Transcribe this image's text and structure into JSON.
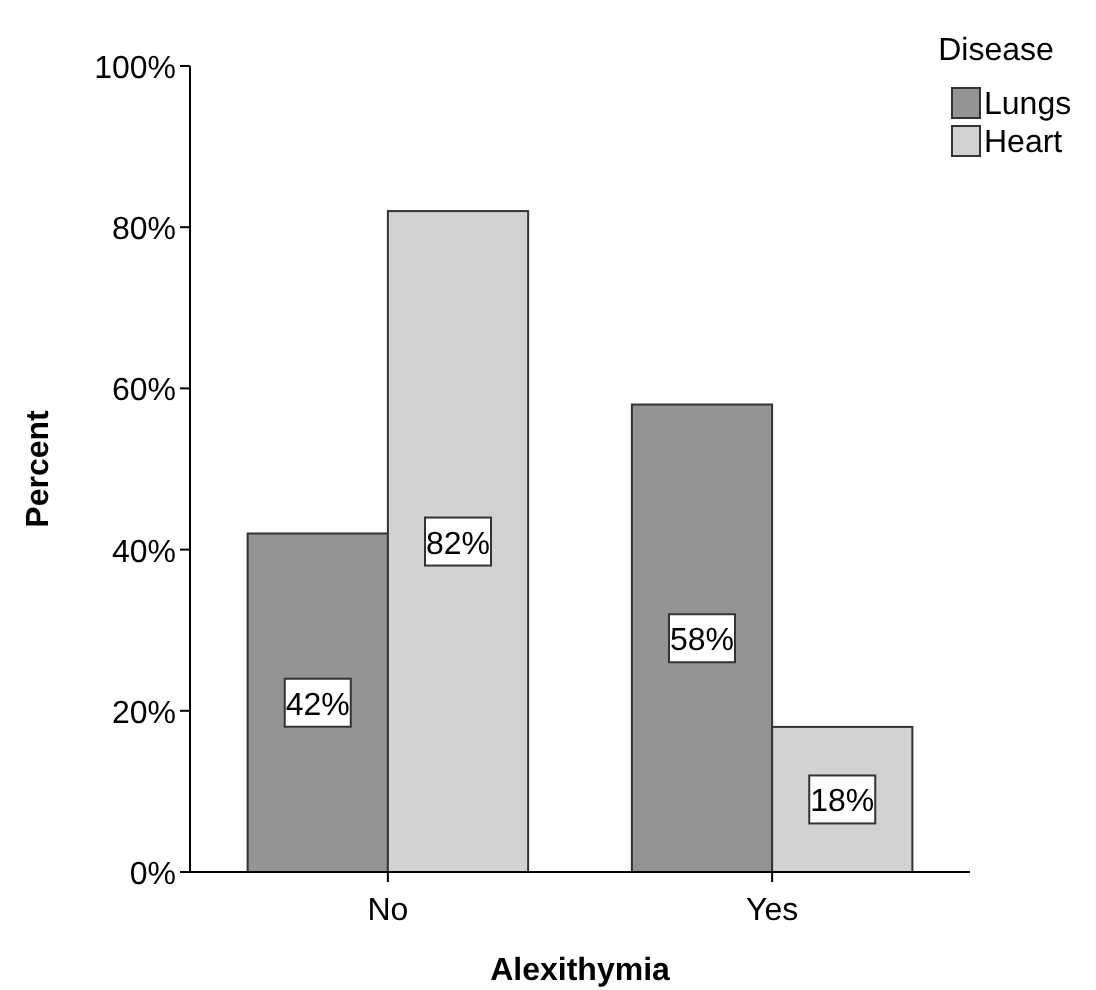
{
  "chart_data": {
    "type": "bar",
    "xlabel": "Alexithymia",
    "ylabel": "Percent",
    "legend_title": "Disease",
    "legend": "top right",
    "categories": [
      "No",
      "Yes"
    ],
    "series": [
      {
        "name": "Lungs",
        "color": "#939393",
        "values": [
          42,
          58
        ],
        "value_labels": [
          "42%",
          "58%"
        ]
      },
      {
        "name": "Heart",
        "color": "#d2d2d2",
        "values": [
          82,
          18
        ],
        "value_labels": [
          "82%",
          "18%"
        ]
      }
    ],
    "ylim": [
      0,
      100
    ],
    "yticks": [
      {
        "value": 0,
        "label": "0%"
      },
      {
        "value": 20,
        "label": "20%"
      },
      {
        "value": 40,
        "label": "40%"
      },
      {
        "value": 60,
        "label": "60%"
      },
      {
        "value": 80,
        "label": "80%"
      },
      {
        "value": 100,
        "label": "100%"
      }
    ],
    "grid": false
  }
}
